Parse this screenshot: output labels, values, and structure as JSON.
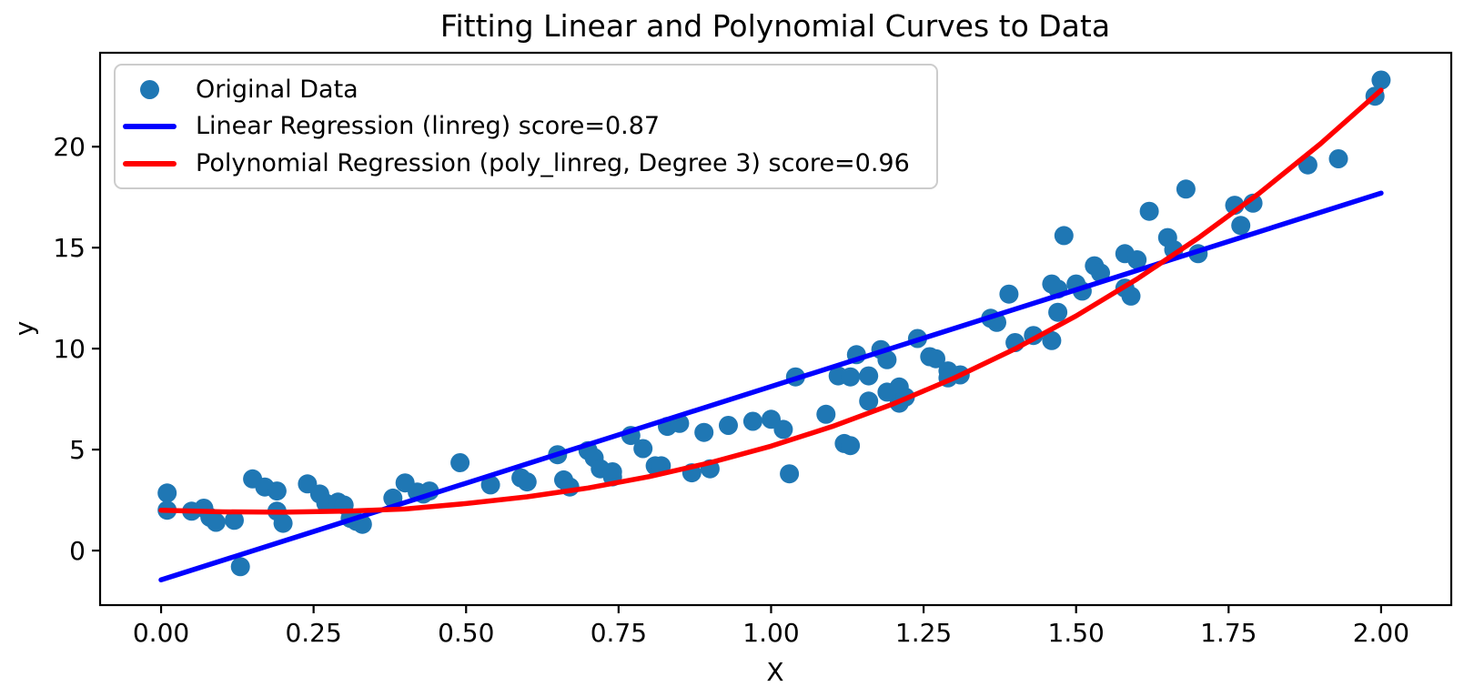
{
  "chart_data": {
    "type": "scatter",
    "title": "Fitting Linear and Polynomial Curves to Data",
    "xlabel": "X",
    "ylabel": "y",
    "xlim": [
      -0.1,
      2.115
    ],
    "ylim": [
      -2.7,
      24.65
    ],
    "xticks": [
      0,
      0.25,
      0.5,
      0.75,
      1.0,
      1.25,
      1.5,
      1.75,
      2.0
    ],
    "xtick_labels": [
      "0.00",
      "0.25",
      "0.50",
      "0.75",
      "1.00",
      "1.25",
      "1.50",
      "1.75",
      "2.00"
    ],
    "yticks": [
      0,
      5,
      10,
      15,
      20
    ],
    "ytick_labels": [
      "0",
      "5",
      "10",
      "15",
      "20"
    ],
    "grid": false,
    "background_color": "#ffffff",
    "frame_color": "#000000",
    "legend_position": "upper left",
    "series": [
      {
        "name": "Original Data",
        "type": "scatter",
        "color": "#1f77b4",
        "marker": "circle",
        "points": [
          [
            0.01,
            2.85
          ],
          [
            0.01,
            2.0
          ],
          [
            0.05,
            1.95
          ],
          [
            0.07,
            2.1
          ],
          [
            0.08,
            1.65
          ],
          [
            0.09,
            1.4
          ],
          [
            0.12,
            1.5
          ],
          [
            0.13,
            -0.8
          ],
          [
            0.15,
            3.55
          ],
          [
            0.17,
            3.15
          ],
          [
            0.19,
            2.95
          ],
          [
            0.19,
            1.95
          ],
          [
            0.2,
            1.35
          ],
          [
            0.24,
            3.3
          ],
          [
            0.26,
            2.8
          ],
          [
            0.27,
            2.35
          ],
          [
            0.29,
            2.4
          ],
          [
            0.3,
            2.25
          ],
          [
            0.31,
            1.6
          ],
          [
            0.32,
            1.45
          ],
          [
            0.33,
            1.3
          ],
          [
            0.38,
            2.6
          ],
          [
            0.4,
            3.35
          ],
          [
            0.42,
            2.9
          ],
          [
            0.43,
            2.8
          ],
          [
            0.44,
            2.95
          ],
          [
            0.49,
            4.35
          ],
          [
            0.54,
            3.25
          ],
          [
            0.59,
            3.6
          ],
          [
            0.6,
            3.4
          ],
          [
            0.65,
            4.75
          ],
          [
            0.66,
            3.5
          ],
          [
            0.67,
            3.15
          ],
          [
            0.7,
            4.95
          ],
          [
            0.71,
            4.6
          ],
          [
            0.72,
            4.05
          ],
          [
            0.74,
            3.9
          ],
          [
            0.74,
            3.65
          ],
          [
            0.77,
            5.7
          ],
          [
            0.79,
            5.05
          ],
          [
            0.81,
            4.2
          ],
          [
            0.82,
            4.2
          ],
          [
            0.83,
            6.15
          ],
          [
            0.85,
            6.3
          ],
          [
            0.87,
            3.85
          ],
          [
            0.89,
            5.85
          ],
          [
            0.9,
            4.05
          ],
          [
            0.93,
            6.2
          ],
          [
            0.97,
            6.4
          ],
          [
            1.0,
            6.5
          ],
          [
            1.02,
            6.0
          ],
          [
            1.03,
            3.8
          ],
          [
            1.04,
            8.6
          ],
          [
            1.09,
            6.75
          ],
          [
            1.11,
            8.65
          ],
          [
            1.12,
            5.3
          ],
          [
            1.13,
            8.6
          ],
          [
            1.13,
            5.2
          ],
          [
            1.14,
            9.7
          ],
          [
            1.16,
            8.65
          ],
          [
            1.16,
            7.4
          ],
          [
            1.18,
            9.95
          ],
          [
            1.19,
            9.45
          ],
          [
            1.19,
            7.85
          ],
          [
            1.21,
            8.1
          ],
          [
            1.21,
            7.3
          ],
          [
            1.22,
            7.6
          ],
          [
            1.24,
            10.5
          ],
          [
            1.26,
            9.6
          ],
          [
            1.27,
            9.5
          ],
          [
            1.29,
            8.9
          ],
          [
            1.29,
            8.55
          ],
          [
            1.31,
            8.7
          ],
          [
            1.36,
            11.5
          ],
          [
            1.37,
            11.3
          ],
          [
            1.39,
            12.7
          ],
          [
            1.4,
            10.3
          ],
          [
            1.43,
            10.65
          ],
          [
            1.46,
            10.4
          ],
          [
            1.46,
            13.2
          ],
          [
            1.47,
            12.95
          ],
          [
            1.47,
            11.8
          ],
          [
            1.48,
            15.6
          ],
          [
            1.5,
            13.2
          ],
          [
            1.51,
            12.85
          ],
          [
            1.53,
            14.1
          ],
          [
            1.54,
            13.75
          ],
          [
            1.58,
            14.7
          ],
          [
            1.6,
            14.4
          ],
          [
            1.58,
            13.0
          ],
          [
            1.59,
            12.6
          ],
          [
            1.62,
            16.8
          ],
          [
            1.65,
            15.5
          ],
          [
            1.66,
            14.9
          ],
          [
            1.68,
            17.9
          ],
          [
            1.7,
            14.7
          ],
          [
            1.76,
            17.1
          ],
          [
            1.77,
            16.1
          ],
          [
            1.79,
            17.2
          ],
          [
            1.88,
            19.1
          ],
          [
            1.93,
            19.4
          ],
          [
            1.99,
            22.5
          ],
          [
            2.0,
            23.3
          ]
        ]
      },
      {
        "name": "Linear Regression (linreg) score=0.87",
        "type": "line",
        "model": "linreg",
        "score": 0.87,
        "color": "#0000ff",
        "points": [
          [
            0.0,
            -1.45
          ],
          [
            2.0,
            17.7
          ]
        ]
      },
      {
        "name": "Polynomial Regression (poly_linreg, Degree 3) score=0.96",
        "type": "line",
        "model": "poly_linreg",
        "degree": 3,
        "score": 0.96,
        "color": "#ff0000",
        "points": [
          [
            0.0,
            2.0
          ],
          [
            0.1,
            1.92
          ],
          [
            0.2,
            1.9
          ],
          [
            0.3,
            1.95
          ],
          [
            0.4,
            2.06
          ],
          [
            0.5,
            2.33
          ],
          [
            0.6,
            2.66
          ],
          [
            0.7,
            3.1
          ],
          [
            0.8,
            3.66
          ],
          [
            0.9,
            4.35
          ],
          [
            1.0,
            5.17
          ],
          [
            1.1,
            6.14
          ],
          [
            1.2,
            7.26
          ],
          [
            1.3,
            8.54
          ],
          [
            1.4,
            9.99
          ],
          [
            1.5,
            11.62
          ],
          [
            1.6,
            13.45
          ],
          [
            1.7,
            15.47
          ],
          [
            1.8,
            17.69
          ],
          [
            1.9,
            20.13
          ],
          [
            2.0,
            22.8
          ]
        ]
      }
    ]
  }
}
